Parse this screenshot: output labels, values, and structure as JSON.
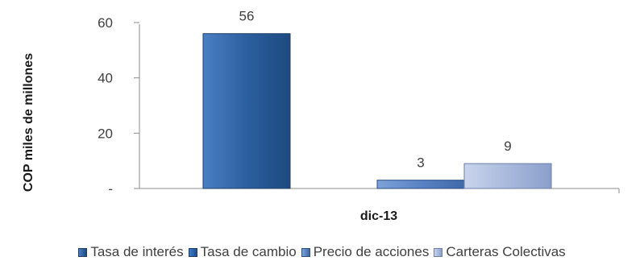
{
  "chart_data": {
    "type": "bar",
    "categories": [
      "dic-13"
    ],
    "series": [
      {
        "name": "Tasa de interés",
        "values": [
          56
        ],
        "color": "#2b5f9e",
        "label": "56"
      },
      {
        "name": "Tasa de cambio",
        "values": [
          0
        ],
        "color": "#2f67b0",
        "label": ""
      },
      {
        "name": "Precio de acciones",
        "values": [
          3
        ],
        "color": "#5a83c4",
        "label": "3"
      },
      {
        "name": "Carteras Colectivas",
        "values": [
          9
        ],
        "color": "#a9b9dc",
        "label": "9"
      }
    ],
    "ylabel": "COP miles de millones",
    "xlabel": "",
    "ylim": [
      0,
      60
    ],
    "yticks": [
      {
        "value": 0,
        "label": "-"
      },
      {
        "value": 20,
        "label": "20"
      },
      {
        "value": 40,
        "label": "40"
      },
      {
        "value": 60,
        "label": "60"
      }
    ],
    "grid": false,
    "legend_position": "bottom"
  }
}
